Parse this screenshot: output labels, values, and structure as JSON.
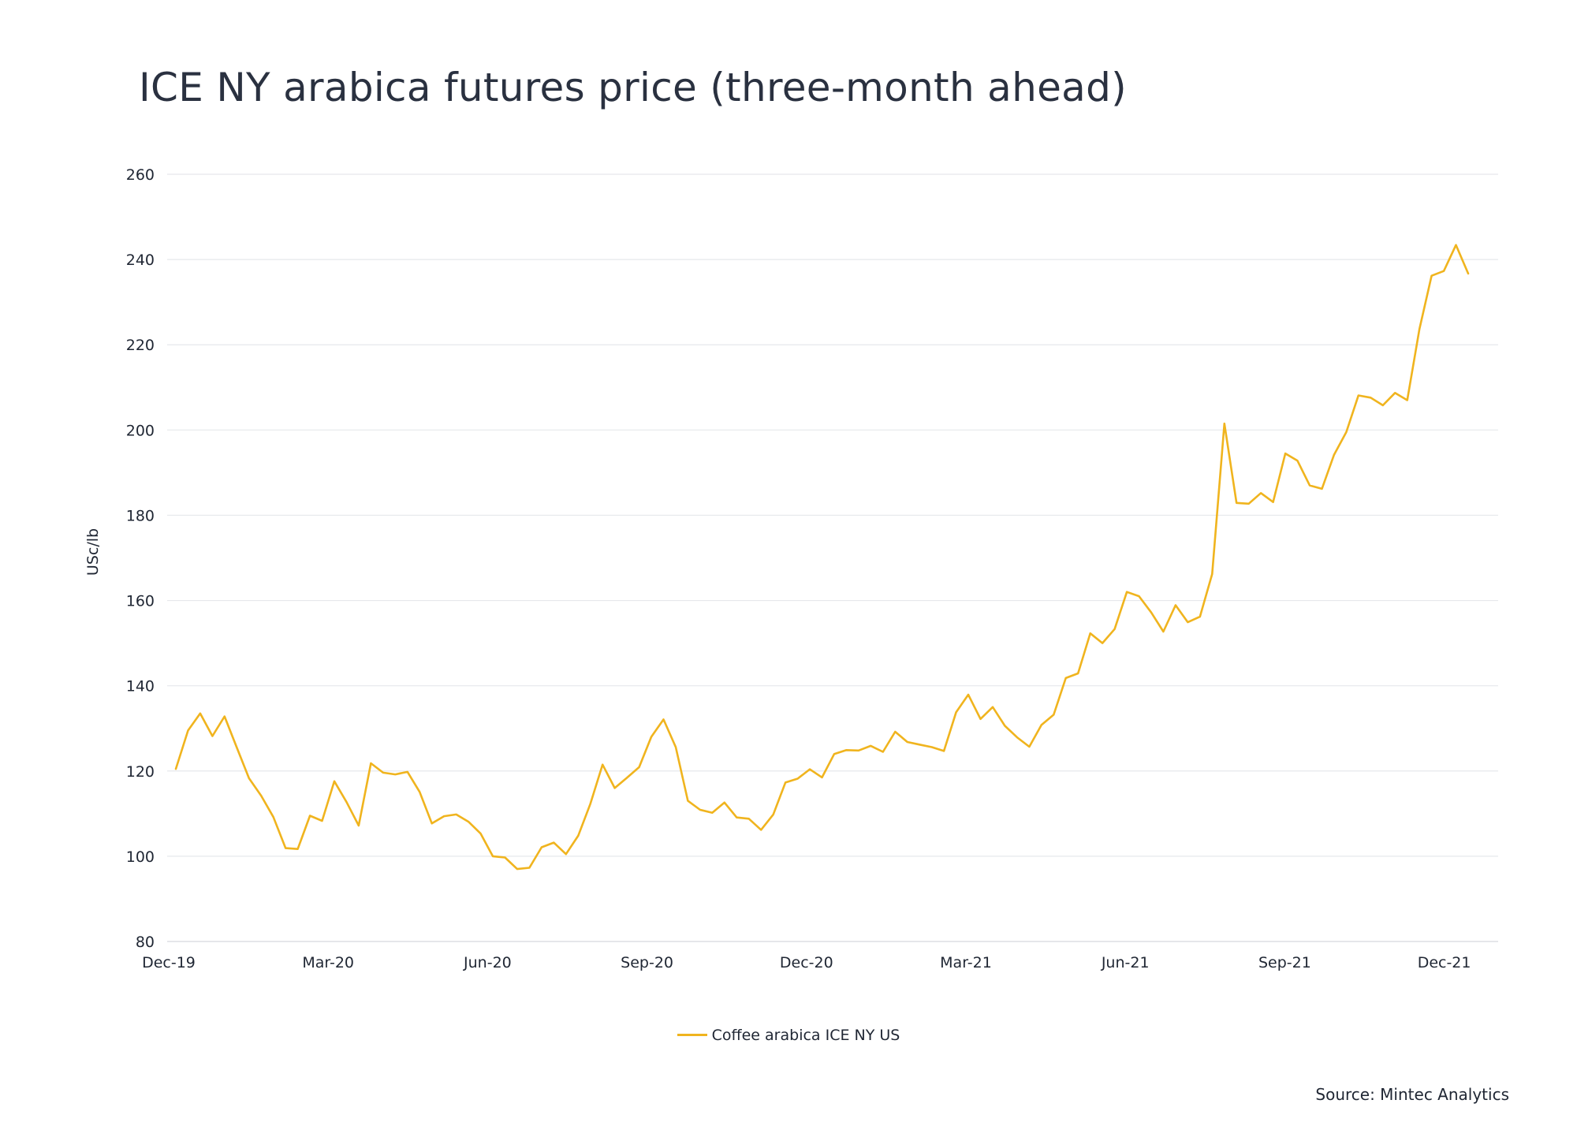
{
  "chart_data": {
    "type": "line",
    "title": "ICE NY arabica futures price (three-month ahead)",
    "ylabel": "USc/lb",
    "xlabel": "",
    "ylim": [
      80,
      260
    ],
    "y_ticks": [
      80,
      100,
      120,
      140,
      160,
      180,
      200,
      220,
      240,
      260
    ],
    "x_ticks": [
      "Dec-19",
      "Mar-20",
      "Jun-20",
      "Sep-20",
      "Dec-20",
      "Mar-21",
      "Jun-21",
      "Sep-21",
      "Dec-21"
    ],
    "grid": "horizontal",
    "legend_position": "bottom-center",
    "colors": {
      "line": "#F0B41E",
      "grid": "#E6E8EC",
      "text": "#1F2633"
    },
    "series": [
      {
        "name": "Coffee arabica ICE NY US",
        "values": [
          120.5,
          129.5,
          133.5,
          128.2,
          132.8,
          125.5,
          118.3,
          114.2,
          109.2,
          101.9,
          101.7,
          109.5,
          108.3,
          117.6,
          112.7,
          107.2,
          121.8,
          119.6,
          119.2,
          119.8,
          115.1,
          107.7,
          109.4,
          109.8,
          108.1,
          105.3,
          100.0,
          99.7,
          97.0,
          97.3,
          102.1,
          103.2,
          100.5,
          104.8,
          112.3,
          121.5,
          116.0,
          118.4,
          120.9,
          128.0,
          132.1,
          125.6,
          113.0,
          110.9,
          110.2,
          112.6,
          109.1,
          108.8,
          106.2,
          109.8,
          117.3,
          118.2,
          120.4,
          118.5,
          124.0,
          124.9,
          124.8,
          125.9,
          124.5,
          129.2,
          126.8,
          126.2,
          125.6,
          124.7,
          133.8,
          137.9,
          132.2,
          135.0,
          130.6,
          127.9,
          125.7,
          130.8,
          133.2,
          141.8,
          142.9,
          152.3,
          150.0,
          153.3,
          162.0,
          161.0,
          157.2,
          152.7,
          158.9,
          154.9,
          156.2,
          166.2,
          201.5,
          182.9,
          182.7,
          185.2,
          183.1,
          194.5,
          192.8,
          187.0,
          186.2,
          194.2,
          199.5,
          208.1,
          207.6,
          205.8,
          208.7,
          207.0,
          223.7,
          236.2,
          237.3,
          243.4,
          236.7
        ]
      }
    ]
  },
  "legend": {
    "label": "Coffee arabica ICE NY US"
  },
  "source": "Source: Mintec Analytics"
}
